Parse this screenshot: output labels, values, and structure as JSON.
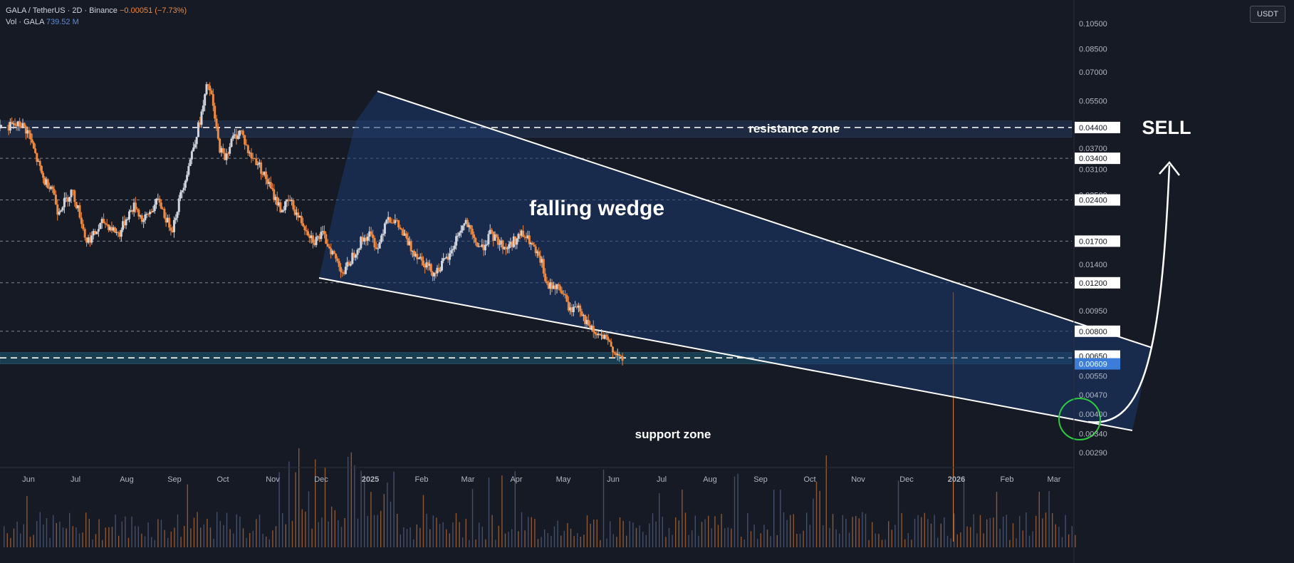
{
  "header": {
    "pair": "GALA / TetherUS · 2D · Binance",
    "change": "−0.00051 (−7.73%)",
    "vol_label": "Vol · GALA",
    "vol_value": "739.52 M"
  },
  "currency": "USDT",
  "colors": {
    "background": "#161a25",
    "up": "#d1d4dc",
    "down": "#f0883e",
    "wedge_fill": "#1e3a6e",
    "zone_fill": "#2a4a7a",
    "support_fill": "#1e6a8a",
    "sell": "#ff1a1a",
    "target_circle": "#2ecc40"
  },
  "chart_data": {
    "type": "candlestick",
    "title": "GALA / TetherUS · 2D · Binance",
    "y_scale": "log",
    "y_ticks": [
      "0.10500",
      "0.08500",
      "0.07000",
      "0.05500",
      "0.04400",
      "0.03700",
      "0.03400",
      "0.03100",
      "0.02500",
      "0.02400",
      "0.01700",
      "0.01400",
      "0.01200",
      "0.00950",
      "0.00800",
      "0.00650",
      "0.00609",
      "0.00550",
      "0.00470",
      "0.00400",
      "0.00340",
      "0.00290"
    ],
    "y_tick_values": [
      0.105,
      0.085,
      0.07,
      0.055,
      0.044,
      0.037,
      0.034,
      0.031,
      0.025,
      0.024,
      0.017,
      0.014,
      0.012,
      0.0095,
      0.008,
      0.0065,
      0.00609,
      0.0055,
      0.0047,
      0.004,
      0.0034,
      0.0029
    ],
    "boxed_ticks": [
      "0.04400",
      "0.03400",
      "0.02400",
      "0.01700",
      "0.01200",
      "0.00800",
      "0.00650"
    ],
    "current_price": "0.00609",
    "x_ticks": [
      "Jun",
      "Jul",
      "Aug",
      "Sep",
      "Oct",
      "Nov",
      "Dec",
      "2025",
      "Feb",
      "Mar",
      "Apr",
      "May",
      "Jun",
      "Jul",
      "Aug",
      "Sep",
      "Oct",
      "Nov",
      "Dec",
      "2026",
      "Feb",
      "Mar"
    ],
    "horizontal_levels": [
      0.034,
      0.024,
      0.017,
      0.012,
      0.008
    ],
    "resistance_zone": {
      "label": "resistance zone",
      "low": 0.0405,
      "high": 0.0465,
      "level": 0.044
    },
    "support_zone": {
      "label": "support zone",
      "low": 0.00609,
      "high": 0.0067,
      "level": 0.0064
    },
    "pattern_label": "falling wedge",
    "signal_label": "SELL",
    "path": [
      [
        0,
        0.044
      ],
      [
        1.5,
        0.045
      ],
      [
        2,
        0.042
      ],
      [
        2.6,
        0.034
      ],
      [
        3.2,
        0.028
      ],
      [
        3.8,
        0.027
      ],
      [
        4.2,
        0.022
      ],
      [
        4.8,
        0.024
      ],
      [
        5.2,
        0.026
      ],
      [
        5.8,
        0.021
      ],
      [
        6.2,
        0.017
      ],
      [
        6.8,
        0.018
      ],
      [
        7.4,
        0.02
      ],
      [
        8.0,
        0.019
      ],
      [
        8.6,
        0.018
      ],
      [
        9.2,
        0.021
      ],
      [
        9.8,
        0.023
      ],
      [
        10.4,
        0.02
      ],
      [
        11.0,
        0.022
      ],
      [
        11.6,
        0.024
      ],
      [
        12.2,
        0.02
      ],
      [
        12.6,
        0.019
      ],
      [
        13.2,
        0.025
      ],
      [
        13.8,
        0.032
      ],
      [
        14.4,
        0.042
      ],
      [
        14.8,
        0.05
      ],
      [
        15.2,
        0.064
      ],
      [
        15.5,
        0.056
      ],
      [
        16.0,
        0.038
      ],
      [
        16.4,
        0.034
      ],
      [
        17.0,
        0.04
      ],
      [
        17.6,
        0.043
      ],
      [
        18.2,
        0.035
      ],
      [
        18.8,
        0.033
      ],
      [
        19.4,
        0.029
      ],
      [
        20.0,
        0.025
      ],
      [
        20.6,
        0.022
      ],
      [
        21.2,
        0.024
      ],
      [
        21.8,
        0.021
      ],
      [
        22.4,
        0.019
      ],
      [
        23.0,
        0.017
      ],
      [
        23.6,
        0.018
      ],
      [
        24.2,
        0.016
      ],
      [
        24.8,
        0.014
      ],
      [
        25.2,
        0.013
      ],
      [
        25.8,
        0.015
      ],
      [
        26.4,
        0.017
      ],
      [
        27.0,
        0.018
      ],
      [
        27.6,
        0.016
      ],
      [
        28.2,
        0.021
      ],
      [
        28.8,
        0.02
      ],
      [
        29.4,
        0.018
      ],
      [
        30.0,
        0.016
      ],
      [
        30.6,
        0.015
      ],
      [
        31.2,
        0.014
      ],
      [
        31.8,
        0.013
      ],
      [
        32.4,
        0.014
      ],
      [
        33.0,
        0.015
      ],
      [
        33.6,
        0.018
      ],
      [
        34.2,
        0.02
      ],
      [
        34.8,
        0.017
      ],
      [
        35.4,
        0.016
      ],
      [
        36.0,
        0.018
      ],
      [
        36.6,
        0.017
      ],
      [
        37.2,
        0.016
      ],
      [
        37.8,
        0.017
      ],
      [
        38.4,
        0.018
      ],
      [
        39.0,
        0.017
      ],
      [
        39.6,
        0.015
      ],
      [
        40.0,
        0.014
      ],
      [
        40.3,
        0.0115
      ],
      [
        40.8,
        0.0118
      ],
      [
        41.4,
        0.0112
      ],
      [
        42.0,
        0.0095
      ],
      [
        42.6,
        0.01
      ],
      [
        43.2,
        0.0085
      ],
      [
        43.8,
        0.0078
      ],
      [
        44.4,
        0.0076
      ],
      [
        45.0,
        0.0071
      ],
      [
        45.5,
        0.0065
      ],
      [
        45.9,
        0.00609
      ]
    ]
  }
}
